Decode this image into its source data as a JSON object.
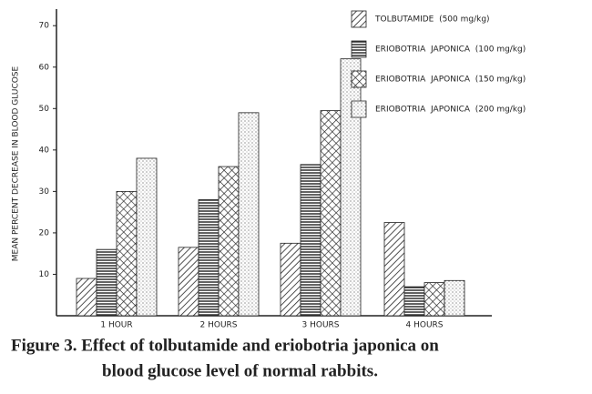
{
  "chart_data": {
    "type": "bar",
    "y_label": "MEAN PERCENT DECREASE IN BLOOD GLUCOSE",
    "categories": [
      "1 HOUR",
      "2 HOURS",
      "3 HOURS",
      "4 HOURS"
    ],
    "series": [
      {
        "name": "TOLBUTAMIDE  (500 mg/kg)",
        "color": "#222222",
        "values": [
          9,
          16.5,
          17.5,
          22.5
        ]
      },
      {
        "name": "ERIOBOTRIA  JAPONICA  (100 mg/kg)",
        "color": "#222222",
        "values": [
          16,
          28,
          36.5,
          7
        ]
      },
      {
        "name": "ERIOBOTRIA  JAPONICA  (150 mg/kg)",
        "color": "#222222",
        "values": [
          30,
          36,
          49.5,
          8
        ]
      },
      {
        "name": "ERIOBOTRIA  JAPONICA  (200 mg/kg)",
        "color": "#222222",
        "values": [
          38,
          49,
          62,
          8.5
        ]
      }
    ],
    "ylim": [
      0,
      74
    ],
    "yticks": [
      10,
      20,
      30,
      40,
      50,
      60,
      70
    ],
    "grid": false,
    "legend": "top-right",
    "caption": [
      "Figure 3.  Effect of tolbutamide and  eriobotria japonica on",
      "blood glucose level of normal rabbits."
    ]
  }
}
